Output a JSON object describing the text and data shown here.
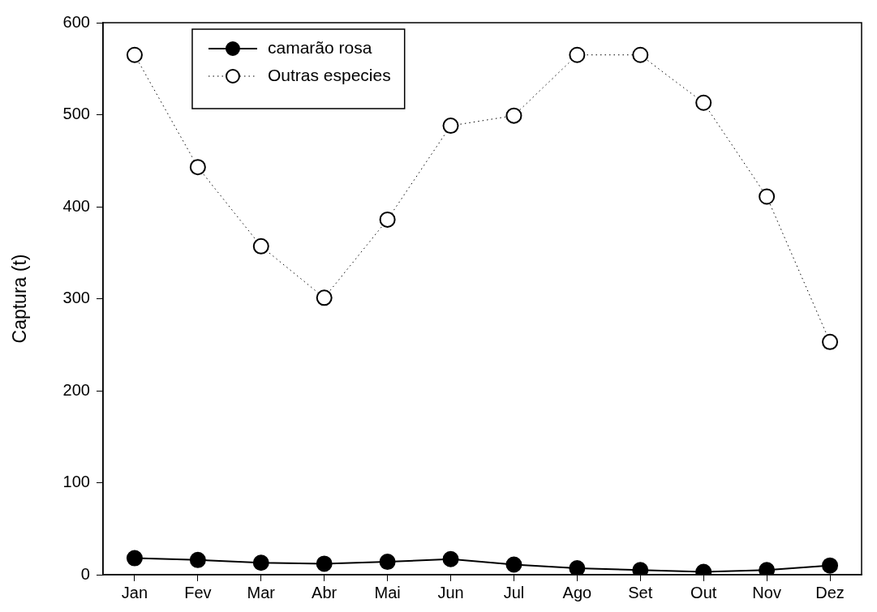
{
  "chart_data": {
    "type": "line",
    "ylabel": "Captura (t)",
    "categories": [
      "Jan",
      "Fev",
      "Mar",
      "Abr",
      "Mai",
      "Jun",
      "Jul",
      "Ago",
      "Set",
      "Out",
      "Nov",
      "Dez"
    ],
    "series": [
      {
        "name": "camarão rosa",
        "color": "#000000",
        "line_style": "solid",
        "values": [
          18,
          16,
          13,
          12,
          14,
          17,
          11,
          7,
          5,
          3,
          5,
          10
        ]
      },
      {
        "name": "Outras especies",
        "color": "#000000",
        "line_style": "dotted",
        "values": [
          565,
          443,
          357,
          301,
          386,
          488,
          499,
          565,
          565,
          513,
          411,
          253
        ]
      }
    ],
    "marker": "circle",
    "ylim": [
      0,
      600
    ],
    "yticks": [
      0,
      100,
      200,
      300,
      400,
      500,
      600
    ],
    "grid": false,
    "legend": "top left"
  }
}
